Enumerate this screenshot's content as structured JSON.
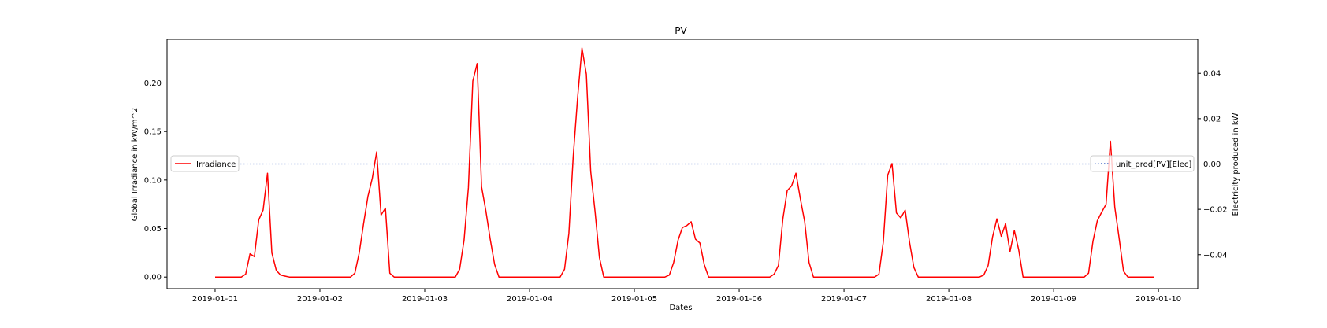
{
  "chart_data": {
    "type": "line",
    "title": "PV",
    "xlabel": "Dates",
    "ylabel_left": "Global Irradiance in kW/m^2",
    "ylabel_right": "Electricity produced in kW",
    "x_tick_labels": [
      "2019-01-01",
      "2019-01-02",
      "2019-01-03",
      "2019-01-04",
      "2019-01-05",
      "2019-01-06",
      "2019-01-07",
      "2019-01-08",
      "2019-01-09",
      "2019-01-10"
    ],
    "xlim": [
      "2018-12-31 13:00",
      "2019-01-10 09:00"
    ],
    "ylim_left": [
      -0.012,
      0.245
    ],
    "ylim_right": [
      -0.055,
      0.055
    ],
    "y_ticks_left": [
      0.0,
      0.05,
      0.1,
      0.15,
      0.2
    ],
    "y_tick_labels_left": [
      "0.00",
      "0.05",
      "0.10",
      "0.15",
      "0.20"
    ],
    "y_ticks_right": [
      -0.04,
      -0.02,
      0.0,
      0.02,
      0.04
    ],
    "y_tick_labels_right": [
      "−0.04",
      "−0.02",
      "0.00",
      "0.02",
      "0.04"
    ],
    "grid": false,
    "series": [
      {
        "name": "Irradiance",
        "axis": "left",
        "color": "#ff0000",
        "style": "solid",
        "x": [
          "2019-01-01 00:00",
          "2019-01-01 02:00",
          "2019-01-01 04:00",
          "2019-01-01 06:00",
          "2019-01-01 07:00",
          "2019-01-01 08:00",
          "2019-01-01 09:00",
          "2019-01-01 10:00",
          "2019-01-01 11:00",
          "2019-01-01 12:00",
          "2019-01-01 13:00",
          "2019-01-01 14:00",
          "2019-01-01 15:00",
          "2019-01-01 16:00",
          "2019-01-01 17:00",
          "2019-01-01 18:00",
          "2019-01-01 20:00",
          "2019-01-01 22:00",
          "2019-01-02 00:00",
          "2019-01-02 04:00",
          "2019-01-02 07:00",
          "2019-01-02 08:00",
          "2019-01-02 09:00",
          "2019-01-02 10:00",
          "2019-01-02 11:00",
          "2019-01-02 12:00",
          "2019-01-02 13:00",
          "2019-01-02 14:00",
          "2019-01-02 15:00",
          "2019-01-02 16:00",
          "2019-01-02 17:00",
          "2019-01-02 20:00",
          "2019-01-03 00:00",
          "2019-01-03 04:00",
          "2019-01-03 07:00",
          "2019-01-03 08:00",
          "2019-01-03 09:00",
          "2019-01-03 10:00",
          "2019-01-03 11:00",
          "2019-01-03 12:00",
          "2019-01-03 13:00",
          "2019-01-03 14:00",
          "2019-01-03 15:00",
          "2019-01-03 16:00",
          "2019-01-03 17:00",
          "2019-01-03 20:00",
          "2019-01-04 00:00",
          "2019-01-04 04:00",
          "2019-01-04 07:00",
          "2019-01-04 08:00",
          "2019-01-04 09:00",
          "2019-01-04 10:00",
          "2019-01-04 11:00",
          "2019-01-04 12:00",
          "2019-01-04 13:00",
          "2019-01-04 14:00",
          "2019-01-04 15:00",
          "2019-01-04 16:00",
          "2019-01-04 17:00",
          "2019-01-04 20:00",
          "2019-01-05 00:00",
          "2019-01-05 04:00",
          "2019-01-05 07:00",
          "2019-01-05 08:00",
          "2019-01-05 09:00",
          "2019-01-05 10:00",
          "2019-01-05 11:00",
          "2019-01-05 12:00",
          "2019-01-05 13:00",
          "2019-01-05 14:00",
          "2019-01-05 15:00",
          "2019-01-05 16:00",
          "2019-01-05 17:00",
          "2019-01-05 20:00",
          "2019-01-06 00:00",
          "2019-01-06 04:00",
          "2019-01-06 07:00",
          "2019-01-06 08:00",
          "2019-01-06 09:00",
          "2019-01-06 10:00",
          "2019-01-06 11:00",
          "2019-01-06 12:00",
          "2019-01-06 13:00",
          "2019-01-06 14:00",
          "2019-01-06 15:00",
          "2019-01-06 16:00",
          "2019-01-06 17:00",
          "2019-01-06 20:00",
          "2019-01-07 00:00",
          "2019-01-07 04:00",
          "2019-01-07 07:00",
          "2019-01-07 08:00",
          "2019-01-07 09:00",
          "2019-01-07 10:00",
          "2019-01-07 11:00",
          "2019-01-07 12:00",
          "2019-01-07 13:00",
          "2019-01-07 14:00",
          "2019-01-07 15:00",
          "2019-01-07 16:00",
          "2019-01-07 17:00",
          "2019-01-07 20:00",
          "2019-01-08 00:00",
          "2019-01-08 04:00",
          "2019-01-08 07:00",
          "2019-01-08 08:00",
          "2019-01-08 09:00",
          "2019-01-08 10:00",
          "2019-01-08 11:00",
          "2019-01-08 12:00",
          "2019-01-08 13:00",
          "2019-01-08 14:00",
          "2019-01-08 15:00",
          "2019-01-08 16:00",
          "2019-01-08 17:00",
          "2019-01-08 20:00",
          "2019-01-09 00:00",
          "2019-01-09 04:00",
          "2019-01-09 07:00",
          "2019-01-09 08:00",
          "2019-01-09 09:00",
          "2019-01-09 10:00",
          "2019-01-09 11:00",
          "2019-01-09 12:00",
          "2019-01-09 13:00",
          "2019-01-09 14:00",
          "2019-01-09 15:00",
          "2019-01-09 16:00",
          "2019-01-09 17:00",
          "2019-01-09 19:00",
          "2019-01-09 21:00",
          "2019-01-09 23:00"
        ],
        "y": [
          0.0,
          0.0,
          0.0,
          0.0,
          0.003,
          0.024,
          0.021,
          0.059,
          0.069,
          0.107,
          0.025,
          0.007,
          0.002,
          0.001,
          0.0,
          0.0,
          0.0,
          0.0,
          0.0,
          0.0,
          0.0,
          0.004,
          0.025,
          0.055,
          0.083,
          0.102,
          0.129,
          0.064,
          0.071,
          0.004,
          0.0,
          0.0,
          0.0,
          0.0,
          0.0,
          0.008,
          0.038,
          0.092,
          0.202,
          0.22,
          0.093,
          0.068,
          0.039,
          0.013,
          0.0,
          0.0,
          0.0,
          0.0,
          0.0,
          0.008,
          0.045,
          0.124,
          0.185,
          0.236,
          0.209,
          0.109,
          0.067,
          0.02,
          0.0,
          0.0,
          0.0,
          0.0,
          0.0,
          0.002,
          0.015,
          0.038,
          0.051,
          0.053,
          0.057,
          0.039,
          0.035,
          0.013,
          0.0,
          0.0,
          0.0,
          0.0,
          0.0,
          0.003,
          0.012,
          0.06,
          0.089,
          0.094,
          0.107,
          0.081,
          0.057,
          0.015,
          0.0,
          0.0,
          0.0,
          0.0,
          0.0,
          0.003,
          0.036,
          0.105,
          0.117,
          0.066,
          0.061,
          0.069,
          0.036,
          0.01,
          0.0,
          0.0,
          0.0,
          0.0,
          0.0,
          0.002,
          0.012,
          0.041,
          0.06,
          0.042,
          0.055,
          0.026,
          0.048,
          0.028,
          0.0,
          0.0,
          0.0,
          0.0,
          0.0,
          0.004,
          0.037,
          0.058,
          0.067,
          0.075,
          0.14,
          0.072,
          0.04,
          0.006,
          0.0,
          0.0,
          0.0,
          0.0
        ]
      },
      {
        "name": "unit_prod[PV][Elec]",
        "axis": "right",
        "color": "#4a6fc9",
        "style": "dotted",
        "x": [
          "2019-01-01 00:00",
          "2019-01-09 23:00"
        ],
        "y": [
          0.0,
          0.0
        ]
      }
    ],
    "legends": [
      {
        "placement": "center-left",
        "entries": [
          "Irradiance"
        ]
      },
      {
        "placement": "center-right",
        "entries": [
          "unit_prod[PV][Elec]"
        ]
      }
    ]
  }
}
